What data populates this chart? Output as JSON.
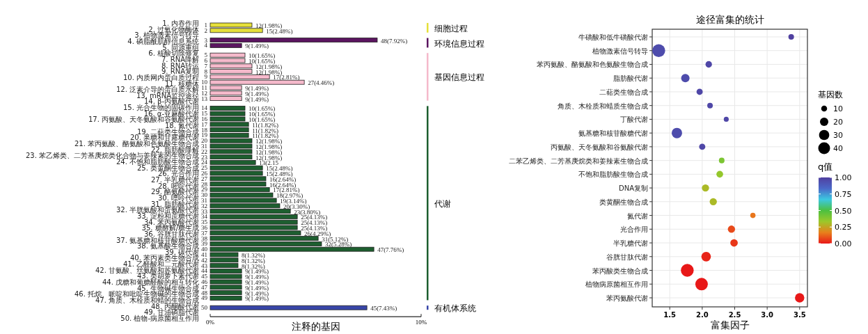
{
  "chart_data": [
    {
      "type": "bar",
      "orientation": "horizontal",
      "xlabel": "注释的基因",
      "categories": [
        "1",
        "2",
        "3",
        "4",
        "5",
        "6",
        "7",
        "8",
        "9",
        "10",
        "11",
        "12",
        "13",
        "14",
        "15",
        "16",
        "17",
        "18",
        "19",
        "20",
        "31",
        "22",
        "23",
        "24",
        "25",
        "26",
        "27",
        "28",
        "29",
        "30",
        "31",
        "32",
        "33",
        "34",
        "35",
        "36",
        "37",
        "38",
        "39",
        "40",
        "41",
        "42",
        "43",
        "44",
        "45",
        "46",
        "47",
        "48",
        "49",
        "50"
      ],
      "values": [
        1.98,
        2.48,
        7.92,
        1.49,
        1.65,
        1.65,
        1.98,
        1.98,
        2.81,
        4.46,
        1.49,
        1.49,
        1.49,
        1.65,
        1.65,
        1.65,
        1.82,
        1.82,
        1.82,
        1.98,
        1.98,
        1.98,
        1.98,
        2.15,
        2.48,
        2.48,
        2.64,
        2.64,
        2.81,
        2.97,
        3.14,
        3.3,
        3.8,
        4.13,
        4.13,
        4.13,
        4.29,
        5.12,
        5.28,
        7.76,
        1.32,
        1.32,
        1.32,
        1.49,
        1.49,
        1.49,
        1.49,
        1.49,
        1.49,
        7.43
      ],
      "value_labels": [
        "12(1.98%)",
        "15(2.48%)",
        "48(7.92%)",
        "9(1.49%)",
        "10(1.65%)",
        "10(1.65%)",
        "12(1.98%)",
        "12(1.98%)",
        "17(2.81%)",
        "27(4.46%)",
        "9(1.49%)",
        "9(1.49%)",
        "9(1.49%)",
        "10(1.65%)",
        "10(1.65%)",
        "10(1.65%)",
        "11(1.82%)",
        "11(1.82%)",
        "11(1.82%)",
        "12(1.98%)",
        "12(1.98%)",
        "12(1.98%)",
        "12(1.98%)",
        "13(2.15",
        "15(2.48%)",
        "15(2.48%)",
        "16(2.64%)",
        "16(2.64%)",
        "17(2.81%)",
        "18(2.97%)",
        "19(3.14%)",
        "20(3.30%)",
        "23(3.80%)",
        "25(4.13%)",
        "25(4.13%)",
        "25(4.13%)",
        "26(4.29%)",
        "31(5.12%)",
        "32(5.28%)",
        "47(7.76%)",
        "8(1.32%)",
        "8(1.32%)",
        "8(1.32%)",
        "9(1.49%)",
        "9(1.49%)",
        "9(1.49%)",
        "9(1.49%)",
        "9(1.49%)",
        "9(1.49%)",
        "45(7.43%)"
      ],
      "colors": [
        "#e6e03a",
        "#e6e03a",
        "#5b1560",
        "#5b1560",
        "#f5b9cb",
        "#f5b9cb",
        "#f5b9cb",
        "#f5b9cb",
        "#f5b9cb",
        "#f5b9cb",
        "#f5b9cb",
        "#f5b9cb",
        "#f5b9cb",
        "#1d5e2f",
        "#1d5e2f",
        "#1d5e2f",
        "#1d5e2f",
        "#1d5e2f",
        "#1d5e2f",
        "#1d5e2f",
        "#1d5e2f",
        "#1d5e2f",
        "#1d5e2f",
        "#1d5e2f",
        "#1d5e2f",
        "#1d5e2f",
        "#1d5e2f",
        "#1d5e2f",
        "#1d5e2f",
        "#1d5e2f",
        "#1d5e2f",
        "#1d5e2f",
        "#1d5e2f",
        "#1d5e2f",
        "#1d5e2f",
        "#1d5e2f",
        "#1d5e2f",
        "#1d5e2f",
        "#1d5e2f",
        "#1d5e2f",
        "#1d5e2f",
        "#1d5e2f",
        "#1d5e2f",
        "#1d5e2f",
        "#1d5e2f",
        "#1d5e2f",
        "#1d5e2f",
        "#1d5e2f",
        "#1d5e2f",
        "#3846a8"
      ],
      "xlim": [
        0,
        10
      ],
      "xticks": [
        {
          "value": 0,
          "label": "0%"
        },
        {
          "value": 10,
          "label": "10%"
        }
      ],
      "annotations": [
        "1. 内吞作用",
        "2. 过氧化物酶体",
        "3. 植物激素信号转导",
        "4. 磷脂酰肌醇信息系统",
        "5. 同源重组",
        "6. 核酸切除修复",
        "7. RNA降解",
        "8. RNA转运",
        "9. RNA复制",
        "10. 内质网内蛋白质过程",
        "11. 核糖体",
        "12. 泛素介导的蛋白质水解",
        "13. mRNA监控途径",
        "14. β-丙氨酸代谢",
        "15. 光合生物的固碳作用",
        "16. α-亚麻酸代谢",
        "17. 丙氨酸、天冬氨酸和谷氨酸代谢",
        "18. 氮代谢",
        "19. 二萜类生物合成",
        "20. 果糖和甘露糖代谢",
        "21. 苯丙氨酸、酪氨酸和色氨酸生物合成",
        "22. 脂肪酸降解",
        "23. 苯乙烯类、二芳基庚烷类化合物与姜辣素的生物合成",
        "24. 不饱和脂肪酸生物合成",
        "25. 类黄酮生物合成",
        "26. 光合作用",
        "27. 半乳糖代谢",
        "28. 嘧啶代谢",
        "29. 酪氨酸代谢",
        "30. 嘌呤代谢",
        "31. 脂肪酸代谢",
        "32. 半胱氨酸和蛋氨酸代谢",
        "33. 淀粉和蔗糖代谢",
        "34. 苯丙氨酸代谢",
        "35. 糖酵解/糖生成",
        "36. 谷胱甘肽代谢",
        "37. 氨基糖和核苷酸糖代谢",
        "38. 氨基酸生物合成",
        "39. 碳代谢",
        "40. 苯丙素类生物合成",
        "41. 乙醛酸和二元酸代谢",
        "42. 甘氨酸、丝氨酸和苏氨酸代谢",
        "43. 类胡萝卜素代谢",
        "44. 戊糖和葡糖醛酸的相互转化",
        "45. 生物碱生物合成",
        "46. 托烷、哌啶和吡啶生物碱的生物合成",
        "47. 角质、木栓质和蜡的生物合成",
        "48. 丙酮酸代谢",
        "49. 甘油磷脂代谢",
        "50. 植物-病原菌相互作用",
        "细胞过程",
        "环境信息过程",
        "基因信息过程",
        "代谢",
        "有机体系统"
      ]
    },
    {
      "type": "bubble",
      "orientation": "horizontal",
      "title": "途径富集的统计",
      "xlabel": "富集因子",
      "legend_title": "基因数",
      "clabel": "q值",
      "grid": true,
      "categories": [
        "牛磺酸和低牛磺酸代谢",
        "植物激素信号转导",
        "苯丙氨酸、酪氨酸和色氨酸生物合成",
        "脂肪酸代谢",
        "二萜类生物合成",
        "角质、木栓质和蜡质生物合成",
        "丁酸代谢",
        "氨基糖和核苷酸糖代谢",
        "丙氨酸、天冬氨酸和谷氨酸代谢",
        "二苯乙烯类、二芳基庚烷类和姜辣素生物合成",
        "不饱和脂肪酸生物合成",
        "DNA复制",
        "类黄酮生物合成",
        "氮代谢",
        "光合作用",
        "半乳糖代谢",
        "谷胱甘肽代谢",
        "苯丙酸类生物合成",
        "植物病原菌相互作用",
        "苯丙氨酸代谢"
      ],
      "values": [
        3.37,
        1.33,
        2.1,
        1.74,
        1.96,
        2.12,
        2.37,
        1.61,
        2.0,
        2.3,
        2.27,
        2.05,
        2.17,
        2.78,
        2.45,
        2.49,
        2.06,
        1.77,
        1.99,
        3.5
      ],
      "sizes": [
        9,
        48,
        12,
        20,
        11,
        9,
        7,
        31,
        11,
        9,
        13,
        15,
        15,
        8,
        15,
        16,
        26,
        47,
        45,
        25
      ],
      "cvalues": [
        1.0,
        0.95,
        0.97,
        0.95,
        0.97,
        0.97,
        0.97,
        0.95,
        0.97,
        0.4,
        0.35,
        0.3,
        0.3,
        0.15,
        0.08,
        0.05,
        0.02,
        0.0,
        0.0,
        0.0
      ],
      "size_legend": [
        10,
        20,
        30,
        40
      ],
      "clim": [
        0,
        1
      ],
      "cticks": [
        {
          "value": 0,
          "label": "0.00"
        },
        {
          "value": 0.25,
          "label": "0.25"
        },
        {
          "value": 0.5,
          "label": "0.50"
        },
        {
          "value": 0.75,
          "label": "0.75"
        },
        {
          "value": 1,
          "label": "1.00"
        }
      ],
      "xlim": [
        1.23,
        3.62
      ],
      "xticks": [
        {
          "value": 1.5,
          "label": "1.5"
        },
        {
          "value": 2,
          "label": "2.0"
        },
        {
          "value": 2.5,
          "label": "2.5"
        },
        {
          "value": 3,
          "label": "3.0"
        },
        {
          "value": 3.5,
          "label": "3.5"
        }
      ]
    }
  ]
}
